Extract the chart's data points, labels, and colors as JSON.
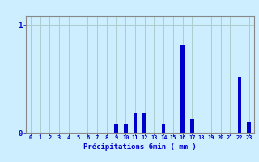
{
  "categories": [
    0,
    1,
    2,
    3,
    4,
    5,
    6,
    7,
    8,
    9,
    10,
    11,
    12,
    13,
    14,
    15,
    16,
    17,
    18,
    19,
    20,
    21,
    22,
    23
  ],
  "values": [
    0.0,
    0.0,
    0.0,
    0.0,
    0.0,
    0.0,
    0.0,
    0.0,
    0.0,
    0.08,
    0.08,
    0.18,
    0.18,
    0.0,
    0.08,
    0.0,
    0.82,
    0.13,
    0.0,
    0.0,
    0.0,
    0.0,
    0.52,
    0.1
  ],
  "bar_color": "#0000cc",
  "bg_color": "#cceeff",
  "grid_color": "#aacccc",
  "axis_color": "#888888",
  "xlabel": "Précipitations 6min ( mm )",
  "ylim": [
    0,
    1.08
  ],
  "xlim": [
    -0.5,
    23.5
  ],
  "label_color": "#0000cc",
  "ytick_vals": [
    0,
    1
  ],
  "ytick_labels": [
    "0",
    "1"
  ]
}
